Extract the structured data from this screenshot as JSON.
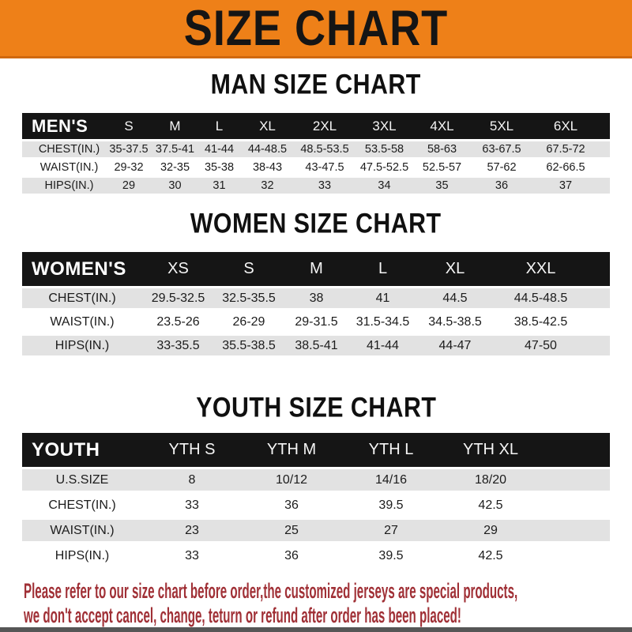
{
  "banner": {
    "title": "SIZE CHART",
    "bg_color": "#ee8018",
    "text_color": "#151515"
  },
  "sections": [
    {
      "id": "men",
      "heading": "MAN SIZE CHART",
      "group_label": "MEN'S",
      "columns": [
        "S",
        "M",
        "L",
        "XL",
        "2XL",
        "3XL",
        "4XL",
        "5XL",
        "6XL"
      ],
      "rows": [
        {
          "label": "CHEST(IN.)",
          "values": [
            "35-37.5",
            "37.5-41",
            "41-44",
            "44-48.5",
            "48.5-53.5",
            "53.5-58",
            "58-63",
            "63-67.5",
            "67.5-72"
          ]
        },
        {
          "label": "WAIST(IN.)",
          "values": [
            "29-32",
            "32-35",
            "35-38",
            "38-43",
            "43-47.5",
            "47.5-52.5",
            "52.5-57",
            "57-62",
            "62-66.5"
          ]
        },
        {
          "label": "HIPS(IN.)",
          "values": [
            "29",
            "30",
            "31",
            "32",
            "33",
            "34",
            "35",
            "36",
            "37"
          ]
        }
      ]
    },
    {
      "id": "women",
      "heading": "WOMEN SIZE CHART",
      "group_label": "WOMEN'S",
      "columns": [
        "XS",
        "S",
        "M",
        "L",
        "XL",
        "XXL"
      ],
      "rows": [
        {
          "label": "CHEST(IN.)",
          "values": [
            "29.5-32.5",
            "32.5-35.5",
            "38",
            "41",
            "44.5",
            "44.5-48.5"
          ]
        },
        {
          "label": "WAIST(IN.)",
          "values": [
            "23.5-26",
            "26-29",
            "29-31.5",
            "31.5-34.5",
            "34.5-38.5",
            "38.5-42.5"
          ]
        },
        {
          "label": "HIPS(IN.)",
          "values": [
            "33-35.5",
            "35.5-38.5",
            "38.5-41",
            "41-44",
            "44-47",
            "47-50"
          ]
        }
      ]
    },
    {
      "id": "youth",
      "heading": "YOUTH SIZE CHART",
      "group_label": "YOUTH",
      "columns": [
        "YTH S",
        "YTH M",
        "YTH L",
        "YTH XL"
      ],
      "rows": [
        {
          "label": "U.S.SIZE",
          "values": [
            "8",
            "10/12",
            "14/16",
            "18/20"
          ]
        },
        {
          "label": "CHEST(IN.)",
          "values": [
            "33",
            "36",
            "39.5",
            "42.5"
          ]
        },
        {
          "label": "WAIST(IN.)",
          "values": [
            "23",
            "25",
            "27",
            "29"
          ]
        },
        {
          "label": "HIPS(IN.)",
          "values": [
            "33",
            "36",
            "39.5",
            "42.5"
          ]
        }
      ]
    }
  ],
  "footer": {
    "line1": "Please refer to our size chart before order,the customized jerseys are special products,",
    "line2": "we don't accept cancel, change, teturn or refund after order has been placed!",
    "text_color": "#a03036"
  },
  "colors": {
    "accent_orange": "#ee8018",
    "bar_black": "#151515",
    "row_gray": "#e2e2e2"
  }
}
